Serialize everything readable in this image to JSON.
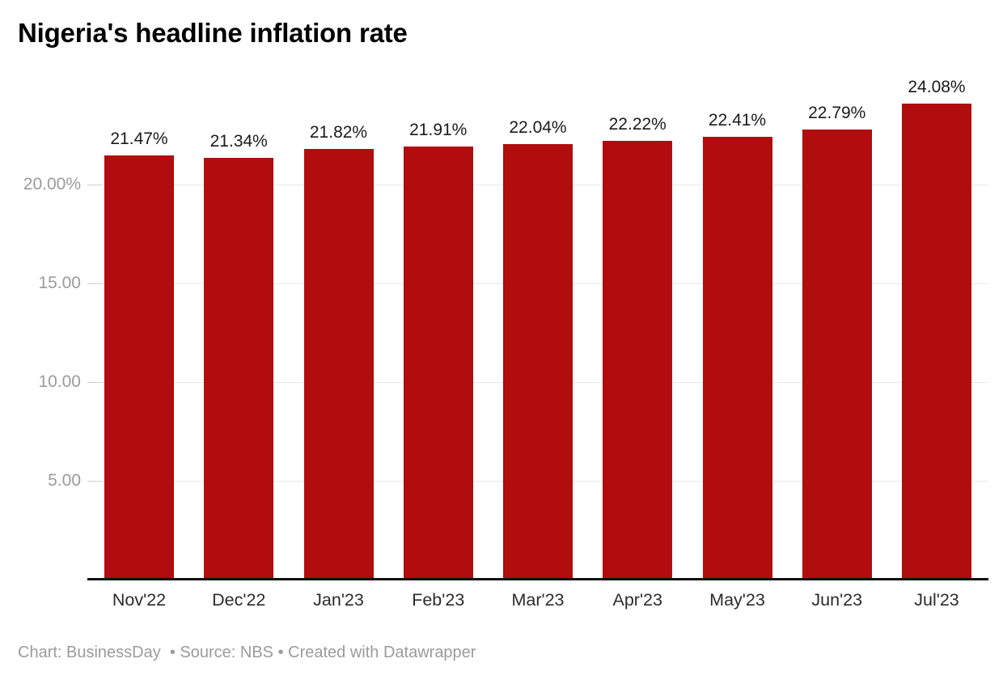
{
  "chart_data": {
    "type": "bar",
    "title": "Nigeria's headline inflation rate",
    "categories": [
      "Nov'22",
      "Dec'22",
      "Jan'23",
      "Feb'23",
      "Mar'23",
      "Apr'23",
      "May'23",
      "Jun'23",
      "Jul'23"
    ],
    "values": [
      21.47,
      21.34,
      21.82,
      21.91,
      22.04,
      22.22,
      22.41,
      22.79,
      24.08
    ],
    "value_labels": [
      "21.47%",
      "21.34%",
      "21.82%",
      "21.91%",
      "22.04%",
      "22.22%",
      "22.41%",
      "22.79%",
      "24.08%"
    ],
    "yticks": [
      {
        "value": 5,
        "label": "5.00"
      },
      {
        "value": 10,
        "label": "10.00"
      },
      {
        "value": 15,
        "label": "15.00"
      },
      {
        "value": 20,
        "label": "20.00%"
      }
    ],
    "ylim": [
      0,
      25.3
    ],
    "xlabel": "",
    "ylabel": "",
    "grid": "horizontal",
    "legend": "none",
    "bar_color": "#b10c0e"
  },
  "footer": {
    "text": "Chart: BusinessDay  • Source: NBS • Created with Datawrapper"
  }
}
